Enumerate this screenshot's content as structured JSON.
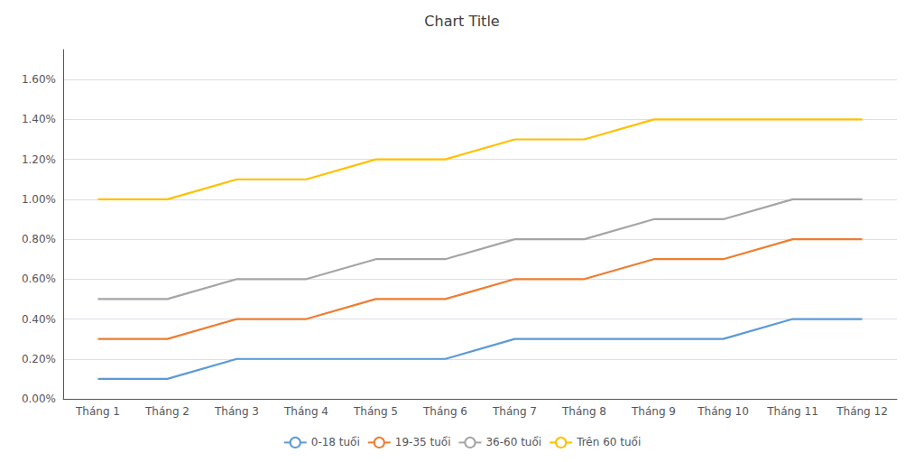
{
  "chart_data": {
    "type": "line",
    "title": "Chart Title",
    "categories": [
      "Tháng 1",
      "Tháng 2",
      "Tháng 3",
      "Tháng 4",
      "Tháng 5",
      "Tháng 6",
      "Tháng 7",
      "Tháng 8",
      "Tháng 9",
      "Tháng 10",
      "Tháng 11",
      "Tháng 12"
    ],
    "series": [
      {
        "name": "0-18 tuổi",
        "color": "#5B9BD5",
        "values": [
          0.001,
          0.001,
          0.002,
          0.002,
          0.002,
          0.002,
          0.003,
          0.003,
          0.003,
          0.003,
          0.004,
          0.004
        ]
      },
      {
        "name": "19-35 tuổi",
        "color": "#ED7D31",
        "values": [
          0.003,
          0.003,
          0.004,
          0.004,
          0.005,
          0.005,
          0.006,
          0.006,
          0.007,
          0.007,
          0.008,
          0.008
        ]
      },
      {
        "name": "36-60 tuổi",
        "color": "#A5A5A5",
        "values": [
          0.005,
          0.005,
          0.006,
          0.006,
          0.007,
          0.007,
          0.008,
          0.008,
          0.009,
          0.009,
          0.01,
          0.01
        ]
      },
      {
        "name": "Trên 60 tuổi",
        "color": "#FFC000",
        "values": [
          0.01,
          0.01,
          0.011,
          0.011,
          0.012,
          0.012,
          0.013,
          0.013,
          0.014,
          0.014,
          0.014,
          0.014
        ]
      }
    ],
    "ylim": [
      0.0,
      0.0175
    ],
    "yticks": [
      {
        "value": 0.0,
        "label": "0.00%"
      },
      {
        "value": 0.002,
        "label": "0.20%"
      },
      {
        "value": 0.004,
        "label": "0.40%"
      },
      {
        "value": 0.006,
        "label": "0.60%"
      },
      {
        "value": 0.008,
        "label": "0.80%"
      },
      {
        "value": 0.01,
        "label": "1.00%"
      },
      {
        "value": 0.012,
        "label": "1.20%"
      },
      {
        "value": 0.014,
        "label": "1.40%"
      },
      {
        "value": 0.016,
        "label": "1.60%"
      }
    ],
    "grid": true,
    "legend": "bottom"
  }
}
